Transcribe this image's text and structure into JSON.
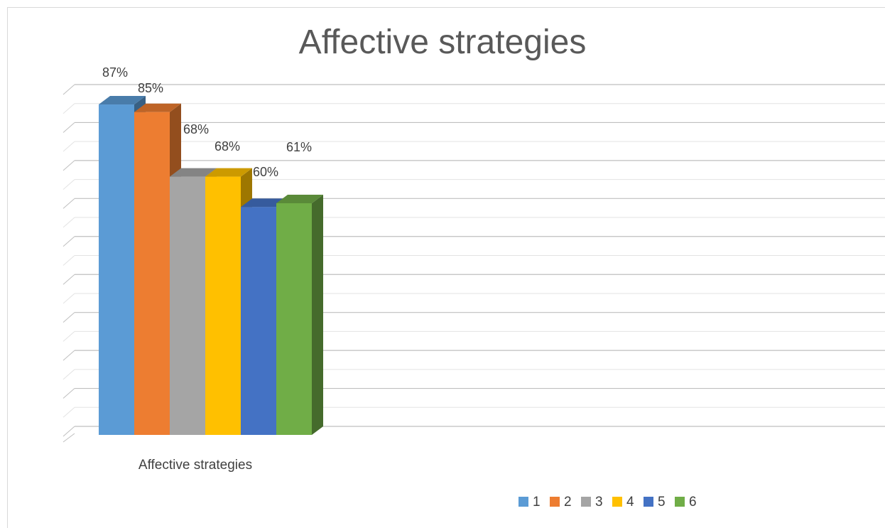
{
  "chart_data": {
    "type": "bar",
    "title": "Affective strategies",
    "categories": [
      "Affective strategies"
    ],
    "series": [
      {
        "name": "1",
        "values": [
          87
        ],
        "label": "87%",
        "color": "#5b9bd5"
      },
      {
        "name": "2",
        "values": [
          85
        ],
        "label": "85%",
        "color": "#ed7d31"
      },
      {
        "name": "3",
        "values": [
          68
        ],
        "label": "68%",
        "color": "#a5a5a5"
      },
      {
        "name": "4",
        "values": [
          68
        ],
        "label": "68%",
        "color": "#ffc000"
      },
      {
        "name": "5",
        "values": [
          60
        ],
        "label": "60%",
        "color": "#4472c4"
      },
      {
        "name": "6",
        "values": [
          61
        ],
        "label": "61%",
        "color": "#70ad47"
      }
    ],
    "ylim": [
      0,
      90
    ],
    "grid": true,
    "legend_position": "bottom",
    "style": "3d-clustered-column"
  }
}
